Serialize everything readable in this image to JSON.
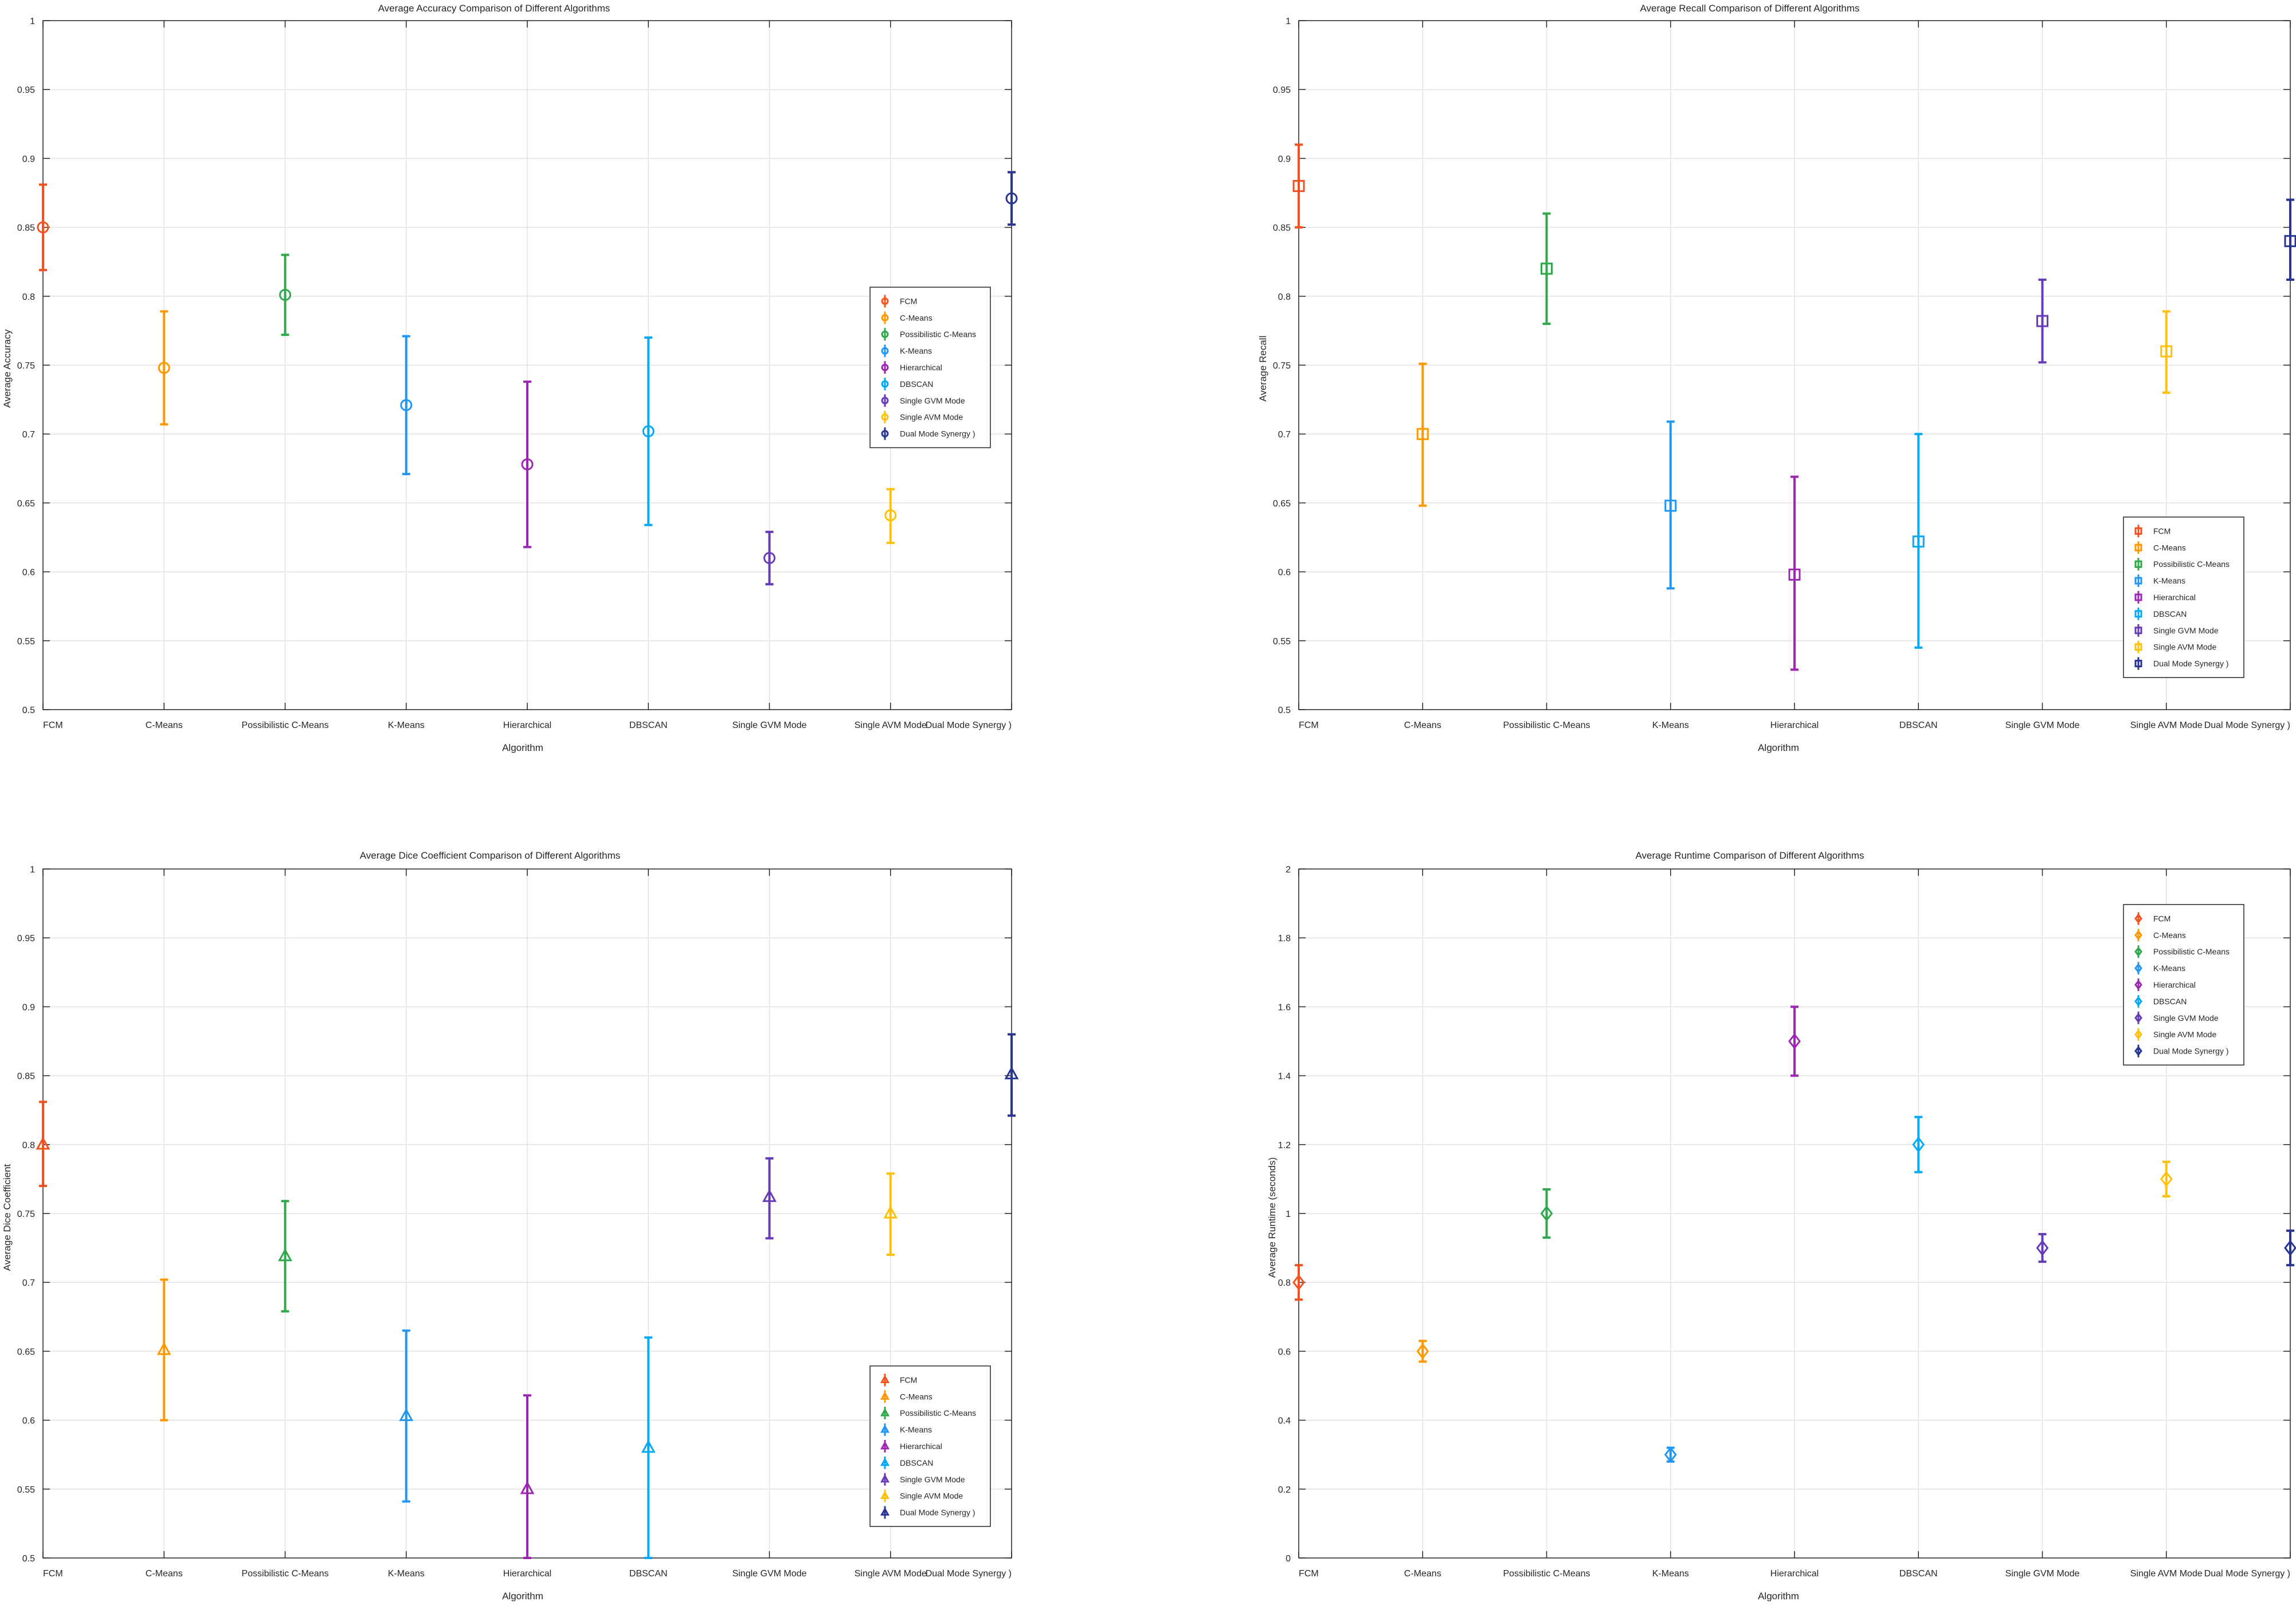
{
  "figure": {
    "colors": [
      "#f4511e",
      "#ff9800",
      "#2ea84a",
      "#2196f3",
      "#9c27b0",
      "#03a9f4",
      "#673ab7",
      "#ffc107",
      "#283593"
    ]
  },
  "chart_data": [
    {
      "type": "errorbar",
      "title": "Average Accuracy Comparison of Different Algorithms",
      "xlabel": "Algorithm",
      "ylabel": "Average Accuracy",
      "categories": [
        "FCM",
        "C-Means",
        "Possibilistic C-Means",
        "K-Means",
        "Hierarchical",
        "DBSCAN",
        "Single GVM Mode",
        "Single AVM Mode",
        "Dual Mode Synergy )"
      ],
      "values": [
        0.85,
        0.748,
        0.801,
        0.721,
        0.678,
        0.702,
        0.61,
        0.641,
        0.871
      ],
      "lower": [
        0.819,
        0.707,
        0.772,
        0.671,
        0.618,
        0.634,
        0.591,
        0.621,
        0.852
      ],
      "upper": [
        0.881,
        0.789,
        0.83,
        0.771,
        0.738,
        0.77,
        0.629,
        0.66,
        0.89
      ],
      "marker": "circle",
      "ylim": [
        0.5,
        1
      ],
      "yticks": [
        0.5,
        0.55,
        0.6,
        0.65,
        0.7,
        0.75,
        0.8,
        0.85,
        0.9,
        0.95,
        1
      ],
      "ytick_labels": [
        "0.5",
        "0.55",
        "0.6",
        "0.65",
        "0.7",
        "0.75",
        "0.8",
        "0.85",
        "0.9",
        "0.95",
        "1"
      ],
      "grid": true,
      "legend_position": "middle-right"
    },
    {
      "type": "errorbar",
      "title": "Average Recall Comparison of Different Algorithms",
      "xlabel": "Algorithm",
      "ylabel": "Average Recall",
      "categories": [
        "FCM",
        "C-Means",
        "Possibilistic C-Means",
        "K-Means",
        "Hierarchical",
        "DBSCAN",
        "Single GVM Mode",
        "Single AVM Mode",
        "Dual Mode Synergy )"
      ],
      "values": [
        0.88,
        0.7,
        0.82,
        0.648,
        0.598,
        0.622,
        0.782,
        0.76,
        0.84
      ],
      "lower": [
        0.85,
        0.648,
        0.78,
        0.588,
        0.529,
        0.545,
        0.752,
        0.73,
        0.812
      ],
      "upper": [
        0.91,
        0.751,
        0.86,
        0.709,
        0.669,
        0.7,
        0.812,
        0.789,
        0.87
      ],
      "marker": "square",
      "ylim": [
        0.5,
        1
      ],
      "yticks": [
        0.5,
        0.55,
        0.6,
        0.65,
        0.7,
        0.75,
        0.8,
        0.85,
        0.9,
        0.95,
        1
      ],
      "ytick_labels": [
        "0.5",
        "0.55",
        "0.6",
        "0.65",
        "0.7",
        "0.75",
        "0.8",
        "0.85",
        "0.9",
        "0.95",
        "1"
      ],
      "grid": true,
      "legend_position": "bottom-right"
    },
    {
      "type": "errorbar",
      "title": "Average Dice Coefficient Comparison of Different Algorithms",
      "xlabel": "Algorithm",
      "ylabel": "Average Dice Coefficient",
      "categories": [
        "FCM",
        "C-Means",
        "Possibilistic C-Means",
        "K-Means",
        "Hierarchical",
        "DBSCAN",
        "Single GVM Mode",
        "Single AVM Mode",
        "Dual Mode Synergy )"
      ],
      "values": [
        0.8,
        0.651,
        0.719,
        0.603,
        0.55,
        0.58,
        0.762,
        0.75,
        0.851
      ],
      "lower": [
        0.77,
        0.6,
        0.679,
        0.541,
        0.5,
        0.5,
        0.732,
        0.72,
        0.821
      ],
      "upper": [
        0.831,
        0.702,
        0.759,
        0.665,
        0.618,
        0.66,
        0.79,
        0.779,
        0.88
      ],
      "marker": "triangle",
      "ylim": [
        0.5,
        1
      ],
      "yticks": [
        0.5,
        0.55,
        0.6,
        0.65,
        0.7,
        0.75,
        0.8,
        0.85,
        0.9,
        0.95,
        1
      ],
      "ytick_labels": [
        "0.5",
        "0.55",
        "0.6",
        "0.65",
        "0.7",
        "0.75",
        "0.8",
        "0.85",
        "0.9",
        "0.95",
        "1"
      ],
      "grid": true,
      "legend_position": "bottom-right"
    },
    {
      "type": "errorbar",
      "title": "Average Runtime Comparison of Different Algorithms",
      "xlabel": "Algorithm",
      "ylabel": "Average Runtime (seconds)",
      "categories": [
        "FCM",
        "C-Means",
        "Possibilistic C-Means",
        "K-Means",
        "Hierarchical",
        "DBSCAN",
        "Single GVM Mode",
        "Single AVM Mode",
        "Dual Mode Synergy )"
      ],
      "values": [
        0.8,
        0.6,
        1.0,
        0.3,
        1.5,
        1.2,
        0.9,
        1.1,
        0.9
      ],
      "lower": [
        0.75,
        0.57,
        0.93,
        0.28,
        1.4,
        1.12,
        0.86,
        1.05,
        0.85
      ],
      "upper": [
        0.85,
        0.63,
        1.07,
        0.32,
        1.6,
        1.28,
        0.94,
        1.15,
        0.95
      ],
      "marker": "diamond",
      "ylim": [
        0,
        2
      ],
      "yticks": [
        0,
        0.2,
        0.4,
        0.6,
        0.8,
        1,
        1.2,
        1.4,
        1.6,
        1.8,
        2
      ],
      "ytick_labels": [
        "0",
        "0.2",
        "0.4",
        "0.6",
        "0.8",
        "1",
        "1.2",
        "1.4",
        "1.6",
        "1.8",
        "2"
      ],
      "grid": true,
      "legend_position": "top-right"
    }
  ]
}
